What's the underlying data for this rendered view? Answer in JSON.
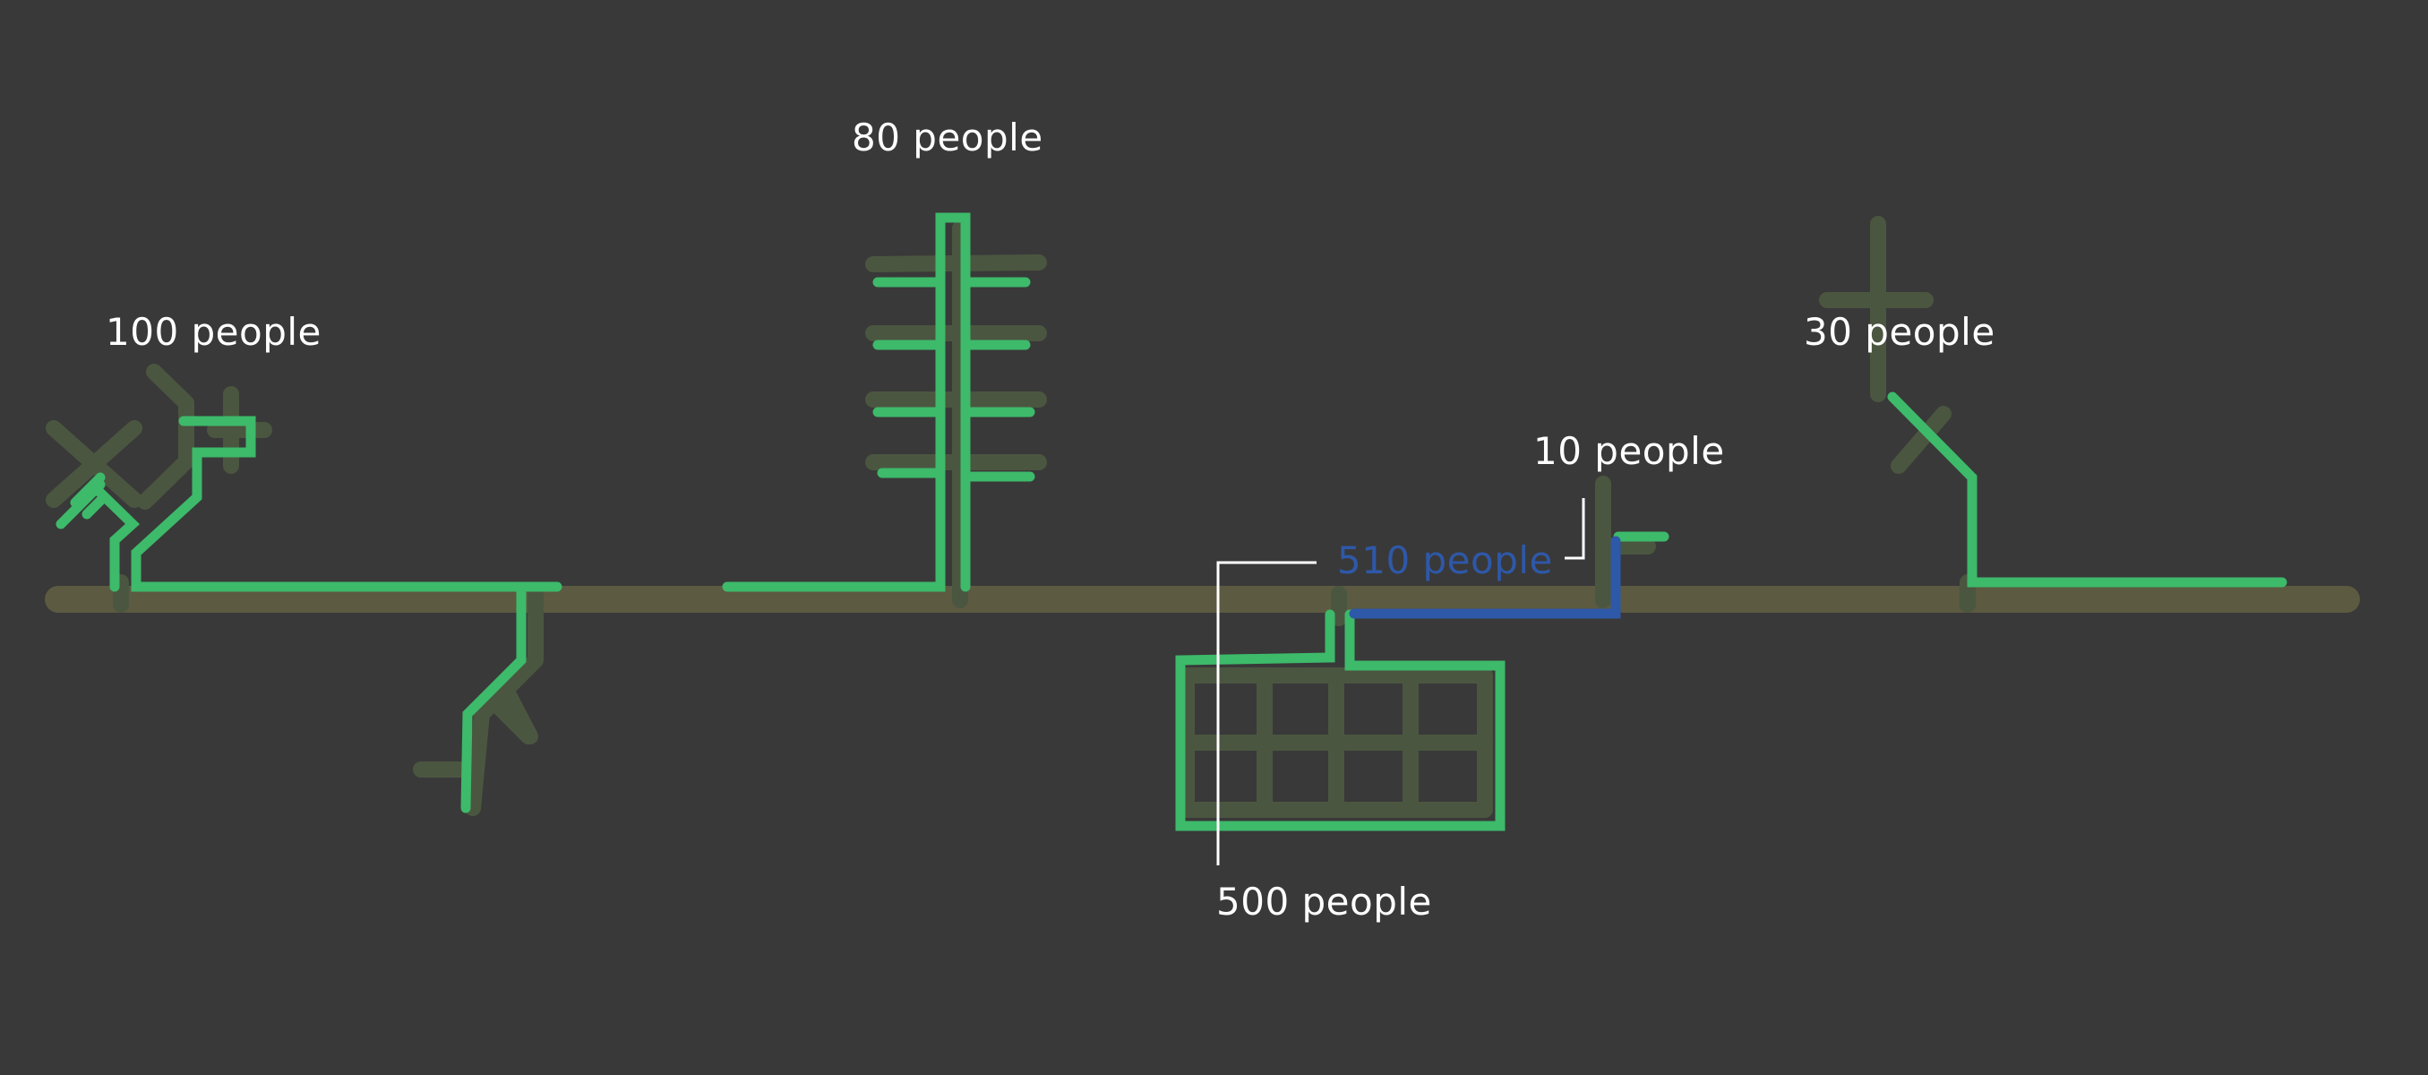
{
  "colors": {
    "background": "#393939",
    "street": "#5c5a41",
    "ghost": "#4b5640",
    "pipe": "#3dba6a",
    "highlight": "#2e58a8",
    "label": "#ffffff"
  },
  "labels": {
    "house_left": "100 people",
    "tower": "80 people",
    "house_right": "30 people",
    "shed": "10 people",
    "school": "500 people",
    "total": "510 people"
  }
}
